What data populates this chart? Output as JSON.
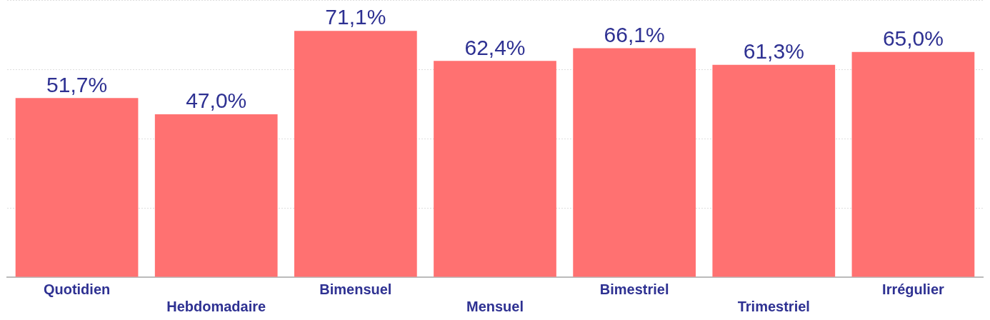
{
  "chart_data": {
    "type": "bar",
    "categories": [
      "Quotidien",
      "Hebdomadaire",
      "Bimensuel",
      "Mensuel",
      "Bimestriel",
      "Trimestriel",
      "Irrégulier"
    ],
    "values": [
      51.7,
      47.0,
      71.1,
      62.4,
      66.1,
      61.3,
      65.0
    ],
    "value_labels": [
      "51,7%",
      "47,0%",
      "71,1%",
      "62,4%",
      "66,1%",
      "61,3%",
      "65,0%"
    ],
    "color": "#ff7171",
    "ylim": [
      0,
      80
    ],
    "yticks": [
      {
        "value": 0,
        "label": null
      },
      {
        "value": 20,
        "label": null
      },
      {
        "value": 40,
        "label": null
      },
      {
        "value": 60,
        "label": null
      },
      {
        "value": 80,
        "label": null
      }
    ],
    "grid": "y",
    "tick_labels": "x"
  }
}
